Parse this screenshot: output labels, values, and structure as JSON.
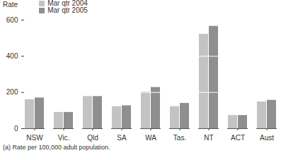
{
  "chart_data": {
    "type": "bar",
    "y_label": "Rate",
    "categories": [
      "NSW",
      "Vic.",
      "Qld",
      "SA",
      "WA",
      "Tas.",
      "NT",
      "ACT",
      "Aust"
    ],
    "series": [
      {
        "name": "Mar qtr 2004",
        "color": "#c3c3c3",
        "values": [
          160,
          90,
          178,
          122,
          203,
          122,
          522,
          73,
          148
        ]
      },
      {
        "name": "Mar qtr 2005",
        "color": "#8f8f8f",
        "values": [
          170,
          90,
          178,
          127,
          228,
          140,
          566,
          73,
          157
        ]
      }
    ],
    "ylim": [
      0,
      600
    ],
    "yticks": [
      0,
      200,
      400,
      600
    ],
    "grid": true,
    "legend": "top-left",
    "note": "(a) Rate per 100,000 adult population."
  }
}
